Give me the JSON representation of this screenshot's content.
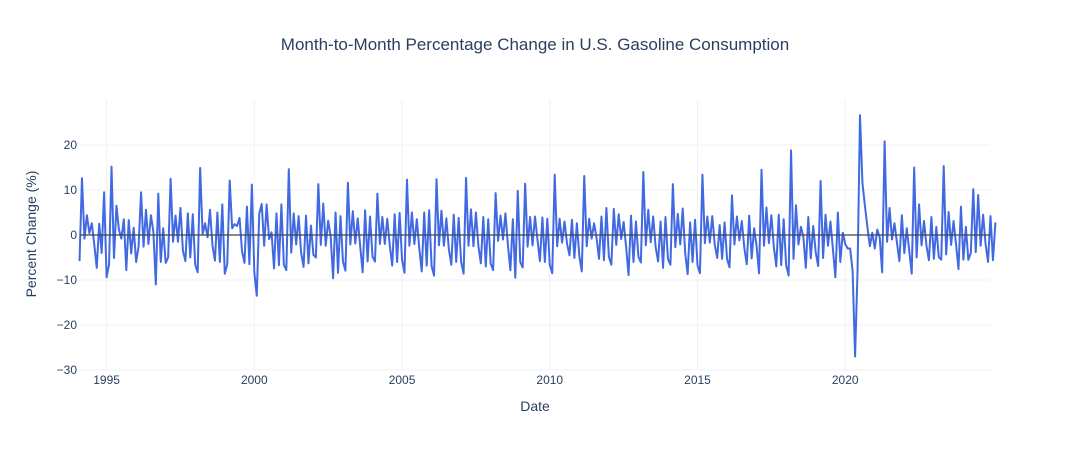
{
  "chart_data": {
    "type": "line",
    "title": "Month-to-Month Percentage Change in U.S. Gasoline Consumption",
    "xlabel": "Date",
    "ylabel": "Percent Change (%)",
    "xlim": [
      1994.1,
      2024.9
    ],
    "ylim": [
      -30,
      30
    ],
    "x_ticks": [
      1995,
      2000,
      2005,
      2010,
      2015,
      2020
    ],
    "y_ticks": [
      -30,
      -20,
      -10,
      0,
      10,
      20
    ],
    "grid": true,
    "zero_line": true,
    "legend": "none",
    "series": [
      {
        "color": "#4169e1",
        "x_start": "1994-02",
        "frequency": "monthly",
        "values": [
          -5.8,
          12.6,
          -0.8,
          4.4,
          0.4,
          2.6,
          -2.1,
          -7.3,
          2.5,
          -4.0,
          9.5,
          -9.4,
          -6.6,
          15.2,
          -5.1,
          6.5,
          1.2,
          -0.8,
          3.5,
          -7.8,
          3.3,
          -4.1,
          1.6,
          -6.0,
          -2.5,
          9.5,
          -2.6,
          5.6,
          -2.0,
          4.4,
          0.7,
          -11.0,
          9.2,
          -6.0,
          1.5,
          -6.2,
          -5.0,
          12.5,
          -1.5,
          4.3,
          -1.5,
          6.0,
          -3.5,
          -5.8,
          4.8,
          -5.0,
          4.6,
          -6.6,
          -8.3,
          14.9,
          0.2,
          2.6,
          -0.5,
          5.6,
          -2.3,
          -5.7,
          5.0,
          -6.0,
          6.8,
          -8.6,
          -6.5,
          12.1,
          1.5,
          2.4,
          2.0,
          3.8,
          -3.6,
          -6.2,
          6.3,
          -6.5,
          11.2,
          -8.3,
          -13.5,
          4.7,
          6.9,
          -2.4,
          6.8,
          -0.9,
          0.6,
          -7.4,
          4.8,
          -6.7,
          6.8,
          -6.6,
          -7.8,
          14.6,
          -3.9,
          4.8,
          -2.1,
          4.2,
          -3.9,
          -7.1,
          4.3,
          -6.3,
          2.1,
          -4.4,
          -5.0,
          11.3,
          -2.2,
          7.0,
          -2.4,
          3.2,
          -0.3,
          -9.6,
          5.0,
          -8.4,
          4.2,
          -5.9,
          -7.9,
          11.6,
          -2.1,
          5.3,
          -1.9,
          3.7,
          -2.5,
          -8.3,
          5.5,
          -5.9,
          4.1,
          -4.8,
          -5.9,
          9.2,
          -2.0,
          4.0,
          -2.0,
          3.6,
          -2.2,
          -6.8,
          4.6,
          -6.0,
          4.9,
          -5.5,
          -8.4,
          12.3,
          -2.4,
          5.0,
          -2.0,
          3.5,
          -3.0,
          -8.1,
          5.0,
          -6.8,
          5.5,
          -6.9,
          -9.0,
          12.4,
          -2.3,
          5.4,
          -2.4,
          3.7,
          -3.1,
          -6.6,
          4.5,
          -6.0,
          3.8,
          -6.0,
          -8.6,
          12.7,
          -2.4,
          5.7,
          -2.5,
          5.0,
          -2.4,
          -6.3,
          4.0,
          -7.0,
          3.5,
          -6.4,
          -7.8,
          9.3,
          -1.3,
          4.3,
          -1.0,
          4.8,
          -2.3,
          -7.8,
          3.5,
          -9.5,
          9.8,
          -6.0,
          -7.2,
          11.4,
          -2.6,
          4.0,
          -2.3,
          4.1,
          -1.0,
          -5.8,
          3.9,
          -6.0,
          3.6,
          -6.6,
          -8.5,
          13.4,
          -2.5,
          3.6,
          -1.7,
          3.0,
          -1.9,
          -4.5,
          3.4,
          -5.1,
          2.6,
          -4.6,
          -8.1,
          13.1,
          -2.5,
          3.6,
          -0.8,
          2.6,
          -0.7,
          -5.3,
          4.1,
          -5.6,
          6.0,
          -4.8,
          -6.6,
          5.8,
          -2.2,
          4.6,
          -0.9,
          2.9,
          -2.6,
          -8.9,
          4.3,
          -6.0,
          3.0,
          -4.8,
          -6.1,
          14.0,
          -2.3,
          5.6,
          -1.6,
          4.1,
          -2.7,
          -5.9,
          3.0,
          -7.3,
          4.0,
          -5.3,
          -6.6,
          11.3,
          -2.7,
          4.7,
          -2.1,
          5.9,
          -4.0,
          -8.7,
          2.8,
          -6.0,
          3.4,
          -6.7,
          -8.5,
          13.4,
          -1.8,
          4.1,
          -1.7,
          4.2,
          -2.1,
          -5.1,
          2.2,
          -5.3,
          2.8,
          -5.3,
          -7.2,
          8.8,
          -2.1,
          4.1,
          -1.2,
          3.1,
          -2.8,
          -6.5,
          4.3,
          -5.2,
          1.5,
          -2.5,
          -8.5,
          14.5,
          -2.4,
          6.1,
          -1.8,
          4.4,
          -2.6,
          -7.0,
          4.5,
          -6.7,
          3.5,
          -6.7,
          -9.0,
          18.8,
          -5.3,
          6.6,
          -2.1,
          1.8,
          -0.4,
          -7.3,
          4.0,
          -5.2,
          2.0,
          -3.8,
          -6.9,
          12.0,
          -5.1,
          4.5,
          -2.4,
          3.0,
          -3.2,
          -9.4,
          5.0,
          -6.0,
          0.5,
          -2.0,
          -3.0,
          -3.0,
          -8.0,
          -27.0,
          -8.0,
          26.6,
          11.5,
          6.5,
          1.8,
          -2.5,
          0.5,
          -3.0,
          1.2,
          -0.5,
          -8.3,
          20.8,
          -1.5,
          6.0,
          -1.0,
          2.6,
          -1.7,
          -5.8,
          4.4,
          -4.0,
          1.5,
          -3.5,
          -8.6,
          15.0,
          -5.0,
          6.8,
          -2.3,
          3.1,
          -2.4,
          -5.6,
          4.0,
          -5.3,
          1.8,
          -4.9,
          -5.5,
          15.3,
          -4.3,
          5.1,
          -2.2,
          3.1,
          -2.0,
          -7.6,
          6.3,
          -5.5,
          1.8,
          -5.5,
          -4.0,
          10.2,
          -3.8,
          8.9,
          -2.4,
          4.5,
          -2.0,
          -6.0,
          4.2,
          -5.6,
          2.8
        ]
      }
    ]
  }
}
